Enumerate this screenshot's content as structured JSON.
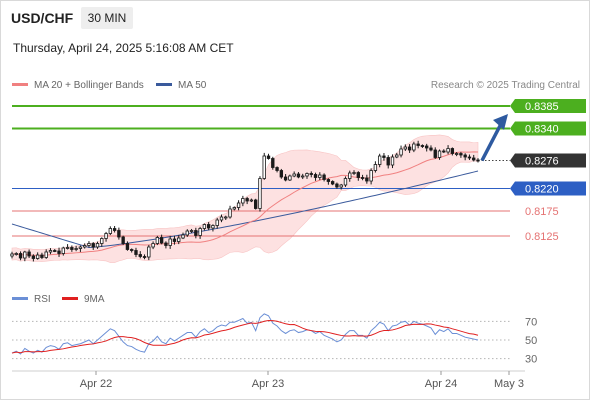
{
  "header": {
    "symbol": "USD/CHF",
    "timeframe": "30 MIN",
    "datetime": "Thursday, April 24, 2025 5:16:08 AM CET"
  },
  "legend": {
    "ma20_label": "MA 20 + Bollinger Bands",
    "ma50_label": "MA 50",
    "credit": "Research © 2025 Trading Central"
  },
  "colors": {
    "ma20": "#f08080",
    "ma50": "#3a5a9c",
    "band_fill": "#fde1e1",
    "candle": "#1a1a1a",
    "resistance": "#4caf1f",
    "pivot": "#2d5fc4",
    "support": "#e57373",
    "arrow": "#2e5aa0",
    "rsi": "#6b8fd6",
    "rsi_ma": "#e02020"
  },
  "levels": [
    {
      "value": 0.8385,
      "label": "0.8385",
      "kind": "resistance"
    },
    {
      "value": 0.834,
      "label": "0.8340",
      "kind": "resistance"
    },
    {
      "value": 0.8276,
      "label": "0.8276",
      "kind": "last"
    },
    {
      "value": 0.822,
      "label": "0.8220",
      "kind": "pivot"
    },
    {
      "value": 0.8175,
      "label": "0.8175",
      "kind": "support"
    },
    {
      "value": 0.8125,
      "label": "0.8125",
      "kind": "support"
    }
  ],
  "rsi_panel": {
    "rsi_label": "RSI",
    "ma_label": "9MA",
    "levels": [
      70,
      50,
      30
    ]
  },
  "x_labels": [
    "Apr 22",
    "Apr 23",
    "Apr 24",
    "May 3"
  ],
  "chart_data": {
    "type": "candlestick",
    "price_ylim": [
      0.8045,
      0.8405
    ],
    "rsi_ylim": [
      20,
      80
    ],
    "closes": [
      0.8089,
      0.809,
      0.8081,
      0.8093,
      0.8085,
      0.808,
      0.8087,
      0.8082,
      0.8093,
      0.8096,
      0.8095,
      0.809,
      0.8101,
      0.8102,
      0.8098,
      0.81,
      0.8103,
      0.8106,
      0.811,
      0.8103,
      0.811,
      0.812,
      0.813,
      0.814,
      0.8136,
      0.8123,
      0.811,
      0.8098,
      0.8096,
      0.8088,
      0.8084,
      0.8083,
      0.8103,
      0.811,
      0.8122,
      0.8111,
      0.8106,
      0.8119,
      0.8114,
      0.8121,
      0.8127,
      0.8135,
      0.8136,
      0.8126,
      0.814,
      0.8148,
      0.8141,
      0.8146,
      0.8157,
      0.8163,
      0.8163,
      0.8179,
      0.8182,
      0.8191,
      0.82,
      0.8195,
      0.8197,
      0.818,
      0.824,
      0.8285,
      0.828,
      0.8262,
      0.8256,
      0.8243,
      0.8237,
      0.8245,
      0.8249,
      0.8243,
      0.8245,
      0.825,
      0.8248,
      0.8242,
      0.8247,
      0.8238,
      0.8234,
      0.8229,
      0.8223,
      0.8227,
      0.824,
      0.8251,
      0.8252,
      0.8242,
      0.8241,
      0.8235,
      0.8256,
      0.8268,
      0.8285,
      0.8282,
      0.8267,
      0.8283,
      0.8287,
      0.8299,
      0.8303,
      0.8297,
      0.8309,
      0.8306,
      0.8305,
      0.8301,
      0.8297,
      0.8282,
      0.8295,
      0.8293,
      0.83,
      0.829,
      0.829,
      0.8287,
      0.8283,
      0.8281,
      0.8277,
      0.8276
    ],
    "ma50_start": 0.8149,
    "ma50_end": 0.8255,
    "rsi_values": [
      36,
      38,
      35,
      41,
      38,
      36,
      39,
      37,
      42,
      44,
      43,
      40,
      46,
      47,
      44,
      45,
      46,
      48,
      50,
      46,
      50,
      54,
      58,
      62,
      60,
      54,
      48,
      44,
      43,
      40,
      38,
      37,
      46,
      49,
      54,
      48,
      46,
      52,
      49,
      52,
      55,
      58,
      58,
      53,
      59,
      62,
      58,
      60,
      64,
      66,
      65,
      69,
      69,
      71,
      73,
      68,
      69,
      60,
      74,
      78,
      76,
      68,
      65,
      60,
      57,
      60,
      61,
      58,
      59,
      61,
      60,
      57,
      59,
      55,
      53,
      51,
      48,
      50,
      56,
      60,
      60,
      55,
      55,
      52,
      60,
      64,
      69,
      67,
      60,
      65,
      66,
      69,
      70,
      66,
      70,
      68,
      67,
      65,
      63,
      56,
      61,
      59,
      62,
      57,
      57,
      55,
      53,
      52,
      51,
      50
    ],
    "projection": {
      "from": 0.8276,
      "to": 0.8385
    }
  }
}
